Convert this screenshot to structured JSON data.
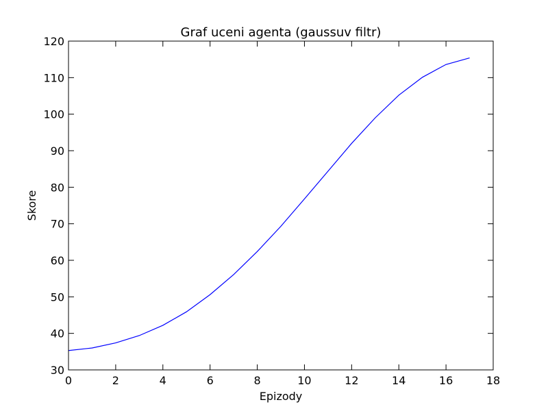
{
  "chart_data": {
    "type": "line",
    "title": "Graf uceni agenta (gaussuv filtr)",
    "xlabel": "Epizody",
    "ylabel": "Skore",
    "xlim": [
      0,
      18
    ],
    "ylim": [
      30,
      120
    ],
    "xticks": [
      "0",
      "2",
      "4",
      "6",
      "8",
      "10",
      "12",
      "14",
      "16",
      "18"
    ],
    "yticks": [
      "30",
      "40",
      "50",
      "60",
      "70",
      "80",
      "90",
      "100",
      "110",
      "120"
    ],
    "grid": false,
    "legend": "none",
    "series": [
      {
        "color": "#0000ff",
        "x": [
          0,
          1,
          2,
          3,
          4,
          5,
          6,
          7,
          8,
          9,
          10,
          11,
          12,
          13,
          14,
          15,
          16,
          17
        ],
        "y": [
          35.3,
          36.0,
          37.4,
          39.4,
          42.2,
          45.9,
          50.6,
          56.1,
          62.4,
          69.3,
          76.8,
          84.4,
          92.0,
          99.0,
          105.2,
          110.1,
          113.6,
          115.4
        ]
      }
    ]
  }
}
